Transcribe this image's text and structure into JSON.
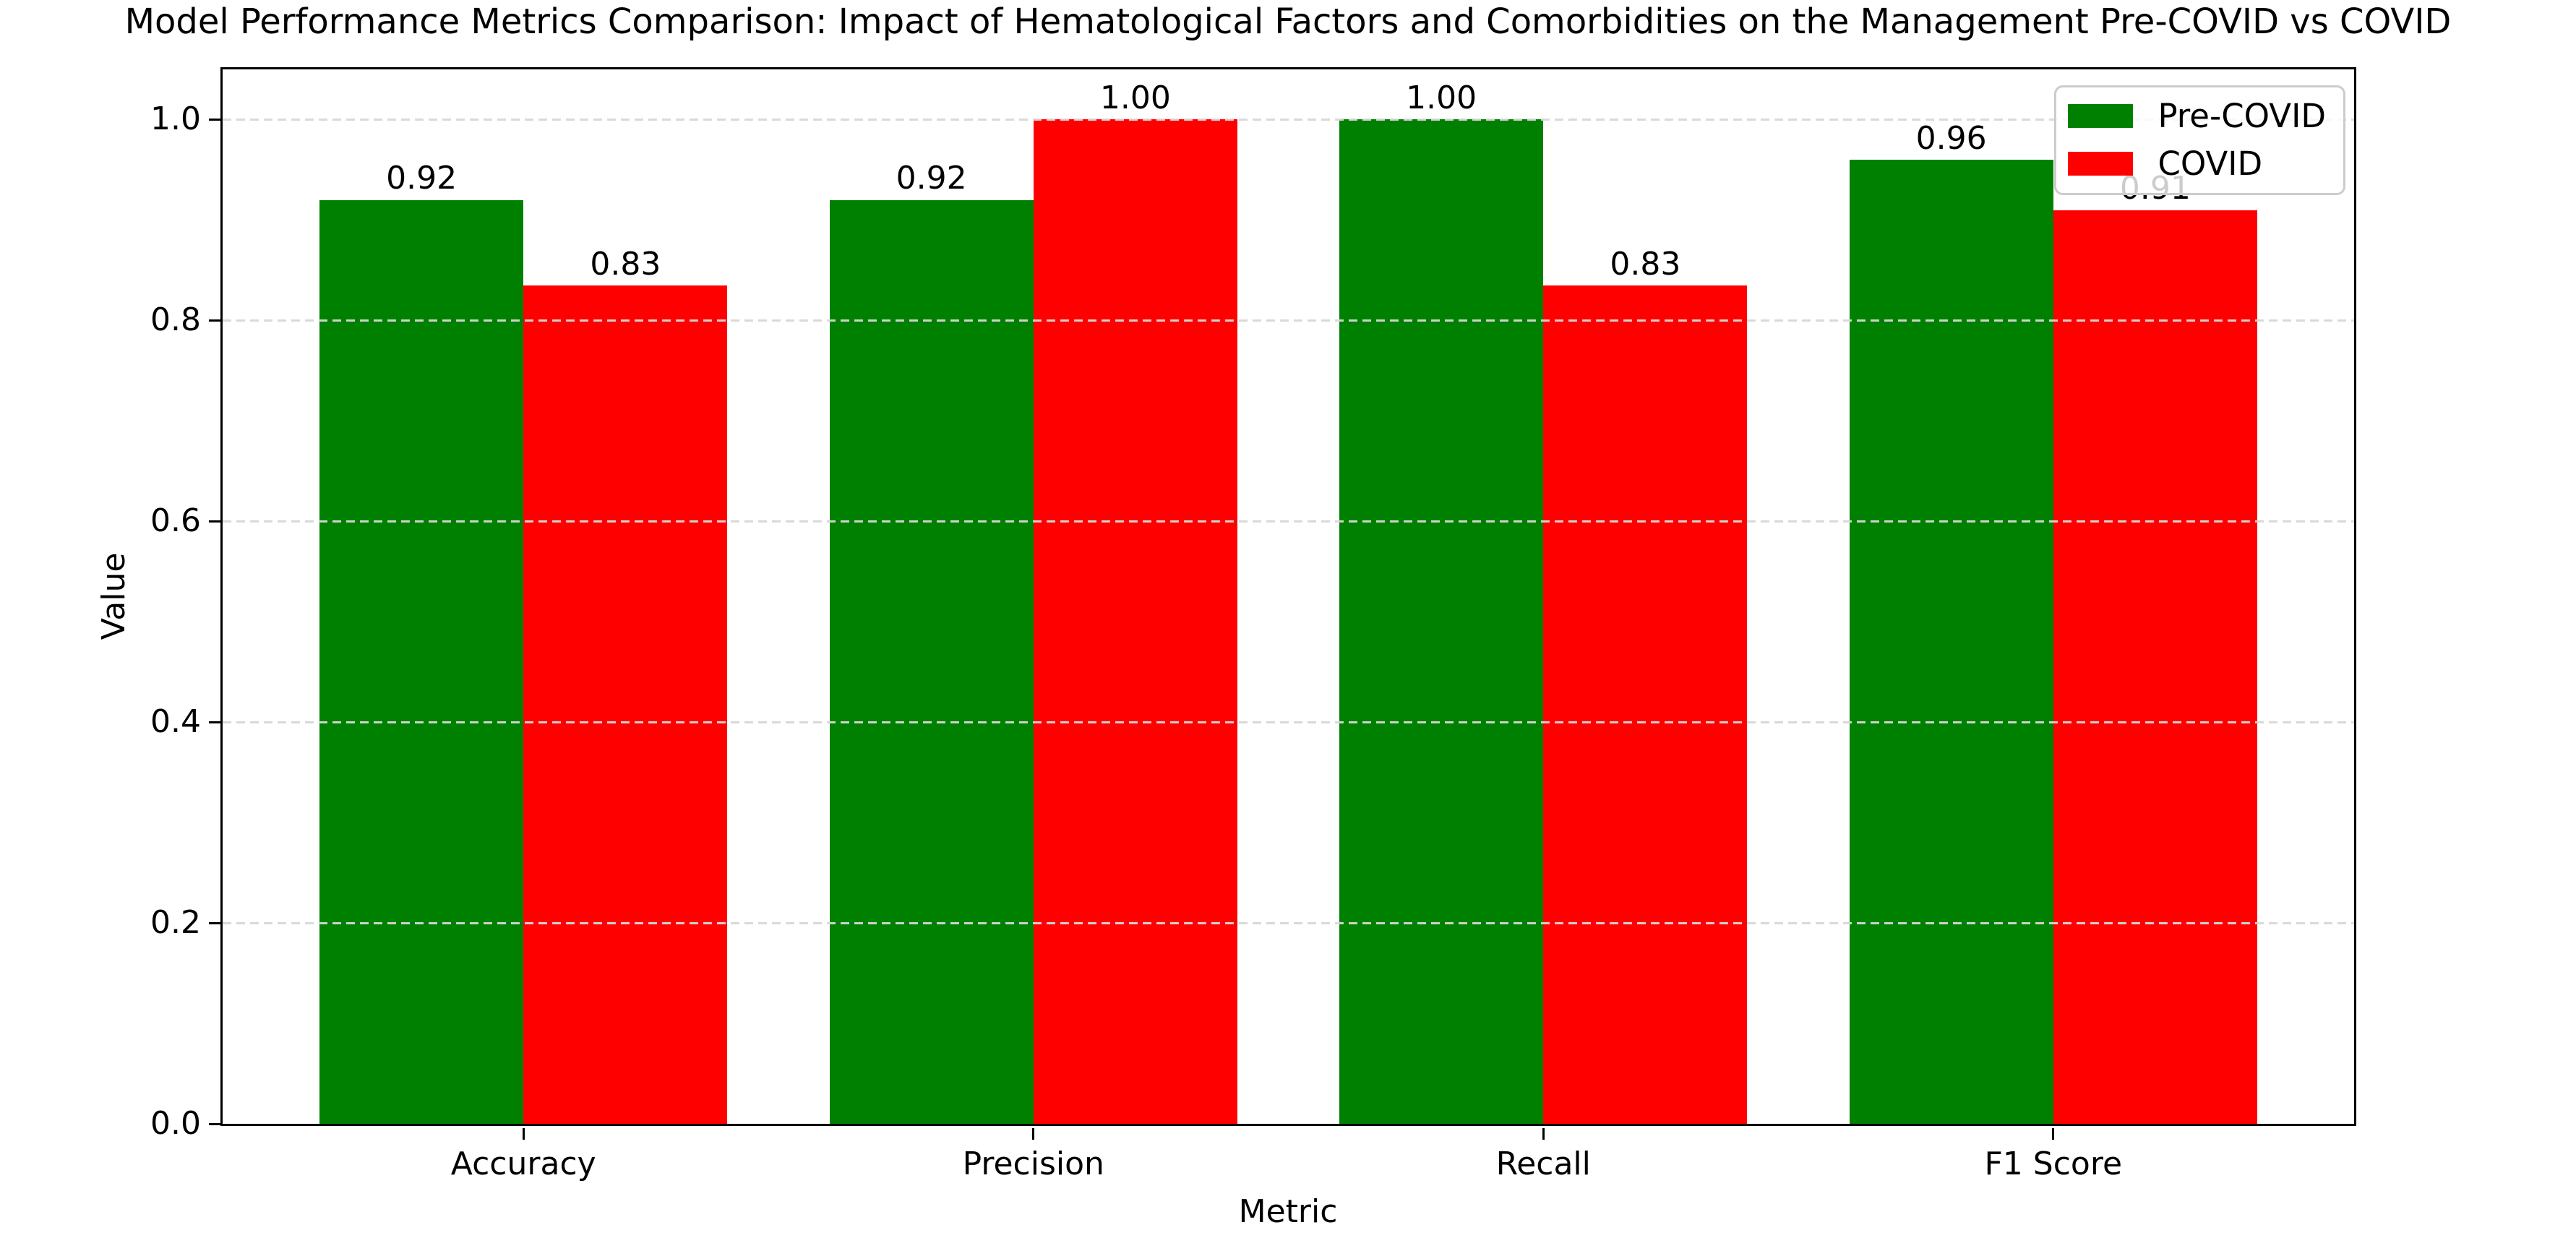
{
  "chart_data": {
    "type": "bar",
    "title": "Model Performance Metrics Comparison: Impact of Hematological Factors and Comorbidities on the Management Pre-COVID vs COVID",
    "xlabel": "Metric",
    "ylabel": "Value",
    "categories": [
      "Accuracy",
      "Precision",
      "Recall",
      "F1 Score"
    ],
    "series": [
      {
        "name": "Pre-COVID",
        "color": "#008000",
        "values": [
          0.92,
          0.92,
          1.0,
          0.96
        ],
        "labels": [
          "0.92",
          "0.92",
          "1.00",
          "0.96"
        ]
      },
      {
        "name": "COVID",
        "color": "#ff0000",
        "values": [
          0.835,
          1.0,
          0.835,
          0.91
        ],
        "labels": [
          "0.83",
          "1.00",
          "0.83",
          "0.91"
        ]
      }
    ],
    "bar_width": 0.4,
    "yticks": [
      0.0,
      0.2,
      0.4,
      0.6,
      0.8,
      1.0
    ],
    "ytick_labels": [
      "0.0",
      "0.2",
      "0.4",
      "0.6",
      "0.8",
      "1.0"
    ],
    "ylim": [
      0,
      1.05
    ],
    "xlim": [
      -0.59,
      3.59
    ],
    "grid": "horizontal dashed, drawn over bars",
    "legend_position": "upper right"
  },
  "legend": {
    "entries": [
      {
        "label": "Pre-COVID",
        "color": "#008000"
      },
      {
        "label": "COVID",
        "color": "#ff0000"
      }
    ]
  },
  "colors": {
    "pre_covid": "#008000",
    "covid": "#ff0000",
    "grid": "#d7d7d7",
    "spine": "#000000",
    "legend_border": "#cccccc",
    "background": "#ffffff"
  }
}
